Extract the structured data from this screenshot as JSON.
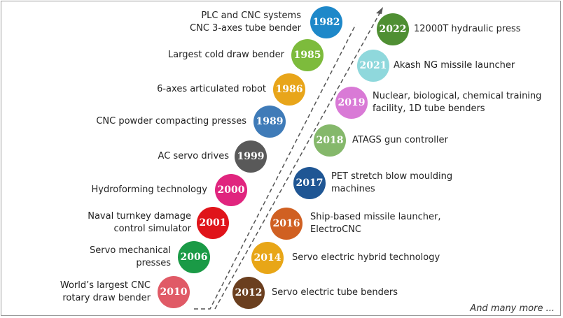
{
  "left_timeline": [
    {
      "year": "1982",
      "color": "#1e88c9",
      "lines": [
        "PLC and CNC systems",
        "CNC 3-axes tube bender"
      ]
    },
    {
      "year": "1985",
      "color": "#7dbb3c",
      "lines": [
        "Largest cold draw bender"
      ]
    },
    {
      "year": "1986",
      "color": "#e8a51a",
      "lines": [
        "6-axes articulated robot"
      ]
    },
    {
      "year": "1989",
      "color": "#3f7bb8",
      "lines": [
        "CNC powder compacting presses"
      ]
    },
    {
      "year": "1999",
      "color": "#595959",
      "lines": [
        "AC servo drives"
      ]
    },
    {
      "year": "2000",
      "color": "#e0257e",
      "lines": [
        "Hydroforming technology"
      ]
    },
    {
      "year": "2001",
      "color": "#e0141a",
      "lines": [
        "Naval turnkey damage",
        "control simulator"
      ]
    },
    {
      "year": "2006",
      "color": "#1a9a46",
      "lines": [
        "Servo mechanical",
        "presses"
      ]
    },
    {
      "year": "2010",
      "color": "#e05a66",
      "lines": [
        "World’s largest CNC",
        "rotary draw bender"
      ]
    }
  ],
  "right_timeline": [
    {
      "year": "2022",
      "color": "#4f8f33",
      "lines": [
        "12000T hydraulic press"
      ]
    },
    {
      "year": "2021",
      "color": "#8fd8dc",
      "lines": [
        "Akash NG missile launcher"
      ]
    },
    {
      "year": "2019",
      "color": "#d97ad6",
      "lines": [
        "Nuclear, biological, chemical training",
        "facility, 1D tube benders"
      ]
    },
    {
      "year": "2018",
      "color": "#85b86b",
      "lines": [
        "ATAGS gun controller"
      ]
    },
    {
      "year": "2017",
      "color": "#1f5694",
      "lines": [
        "PET stretch blow moulding",
        "machines"
      ]
    },
    {
      "year": "2016",
      "color": "#d06022",
      "lines": [
        "Ship-based missile launcher,",
        "ElectroCNC"
      ]
    },
    {
      "year": "2014",
      "color": "#e8a617",
      "lines": [
        "Servo electric hybrid technology"
      ]
    },
    {
      "year": "2012",
      "color": "#6b3f1f",
      "lines": [
        "Servo electric tube benders"
      ]
    }
  ],
  "footer_text": "And many more ..."
}
